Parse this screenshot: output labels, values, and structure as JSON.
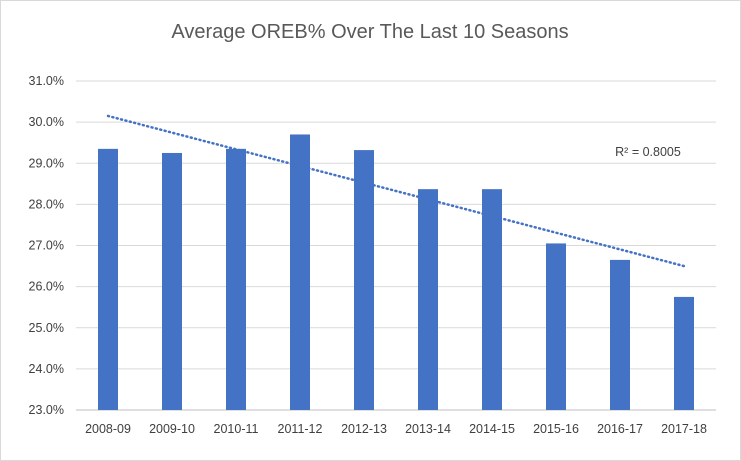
{
  "chart_data": {
    "type": "bar",
    "title": "Average OREB% Over The Last 10 Seasons",
    "xlabel": "",
    "ylabel": "",
    "categories": [
      "2008-09",
      "2009-10",
      "2010-11",
      "2011-12",
      "2012-13",
      "2013-14",
      "2014-15",
      "2015-16",
      "2016-17",
      "2017-18"
    ],
    "values": [
      29.35,
      29.25,
      29.35,
      29.7,
      29.32,
      28.37,
      28.37,
      27.05,
      26.65,
      25.75
    ],
    "ylim": [
      23.0,
      31.0
    ],
    "yticks": [
      23.0,
      24.0,
      25.0,
      26.0,
      27.0,
      28.0,
      29.0,
      30.0,
      31.0
    ],
    "ytick_labels": [
      "23.0%",
      "24.0%",
      "25.0%",
      "26.0%",
      "27.0%",
      "28.0%",
      "29.0%",
      "30.0%",
      "31.0%"
    ],
    "grid": true,
    "legend": "none",
    "bar_color": "#4472c4",
    "trendline": {
      "type": "linear",
      "start": 30.15,
      "end": 26.5,
      "color": "#4472c4",
      "style": "dotted",
      "label": "R² = 0.8005"
    }
  }
}
